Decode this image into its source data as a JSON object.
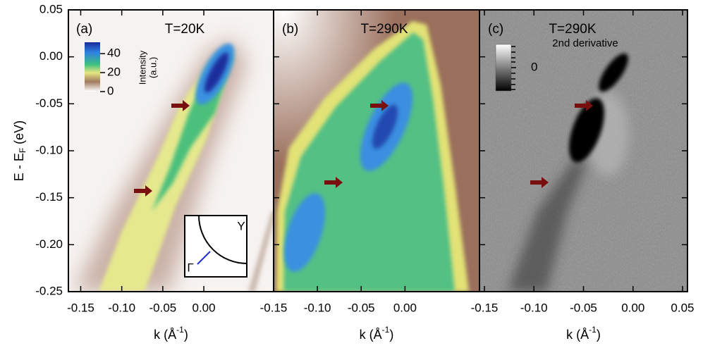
{
  "chart_data": [
    {
      "type": "heatmap",
      "label": "(a)",
      "title": "T=20K",
      "xlabel": {
        "main": "k (Å",
        "sup": "-1",
        "end": ")"
      },
      "ylabel": {
        "main": "E - E",
        "sub": "F",
        "end": " (eV)"
      },
      "xlim": [
        -0.165,
        0.085
      ],
      "xticks": [
        -0.15,
        {
          "value": -0.1,
          "label": "-0.10"
        },
        -0.05,
        {
          "value": 0,
          "label": "0.00"
        }
      ],
      "ylim": [
        -0.25,
        0.05
      ],
      "yticks": [
        0.05,
        {
          "value": 0,
          "label": "0.00"
        },
        -0.05,
        {
          "value": -0.1,
          "label": "-0.10"
        },
        -0.15,
        {
          "value": -0.2,
          "label": "-0.20"
        },
        -0.25
      ],
      "colorbar": {
        "label_lines": [
          "Intensity",
          "(a.u.)"
        ],
        "lim": [
          0,
          52
        ],
        "ticks": [
          0,
          20,
          40
        ]
      },
      "inset": {
        "labels": [
          "Γ",
          "Y"
        ]
      }
    },
    {
      "type": "heatmap",
      "label": "(b)",
      "title": "T=290K",
      "xlabel": {
        "main": "k (Å",
        "sup": "-1",
        "end": ")"
      },
      "xlim": [
        -0.15,
        0.085
      ],
      "xticks": [
        -0.15,
        {
          "value": -0.1,
          "label": "-0.10"
        },
        -0.05,
        {
          "value": 0,
          "label": "0.00"
        }
      ]
    },
    {
      "type": "heatmap",
      "label": "(c)",
      "title": "T=290K",
      "subtitle": "2nd derivative",
      "xlabel": {
        "main": "k (Å",
        "sup": "-1",
        "end": ")"
      },
      "xlim": [
        -0.155,
        0.055
      ],
      "xticks": [
        -0.15,
        {
          "value": -0.1,
          "label": "-0.10"
        },
        -0.05,
        {
          "value": 0,
          "label": "0.00"
        },
        0.05
      ],
      "colorbar": {
        "lim": [
          -1,
          1
        ],
        "ticks": [
          0
        ]
      }
    }
  ]
}
